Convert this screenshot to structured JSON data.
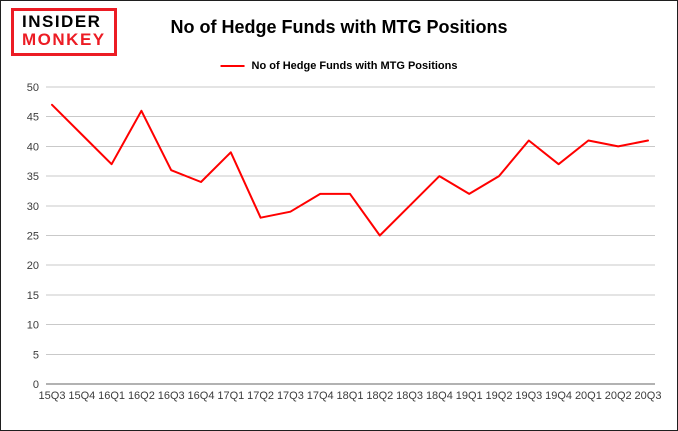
{
  "logo": {
    "line1": "INSIDER",
    "line2": "MONKEY",
    "border_color": "#ec1c24",
    "accent_color": "#ec1c24"
  },
  "chart_data": {
    "type": "line",
    "title": "No of Hedge Funds with MTG Positions",
    "legend": "No of Hedge Funds with MTG Positions",
    "legend_position": "top",
    "categories": [
      "15Q3",
      "15Q4",
      "16Q1",
      "16Q2",
      "16Q3",
      "16Q4",
      "17Q1",
      "17Q2",
      "17Q3",
      "17Q4",
      "18Q1",
      "18Q2",
      "18Q3",
      "18Q4",
      "19Q1",
      "19Q2",
      "19Q3",
      "19Q4",
      "20Q1",
      "20Q2",
      "20Q3"
    ],
    "series": [
      {
        "name": "No of Hedge Funds with MTG Positions",
        "values": [
          47,
          42,
          37,
          46,
          36,
          34,
          39,
          28,
          29,
          32,
          32,
          25,
          30,
          35,
          32,
          35,
          41,
          37,
          41,
          40,
          41
        ]
      }
    ],
    "ylim": [
      0,
      50
    ],
    "ytick_step": 5,
    "yticks": [
      0,
      5,
      10,
      15,
      20,
      25,
      30,
      35,
      40,
      45,
      50
    ],
    "grid": true,
    "line_color": "#ff0000",
    "grid_color": "#c9c9c9",
    "axis_color": "#666666",
    "tick_label_color": "#3c3c3c"
  }
}
